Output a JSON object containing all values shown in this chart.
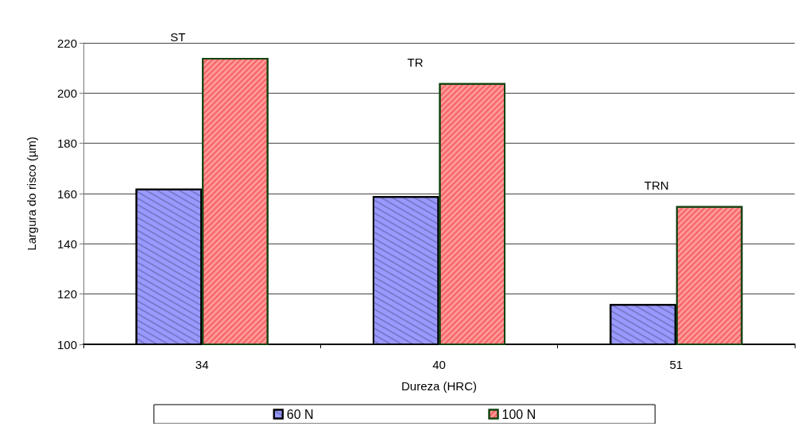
{
  "chart_data": {
    "type": "bar",
    "xlabel": "Dureza (HRC)",
    "ylabel": "Largura do risco (µm)",
    "categories": [
      "34",
      "40",
      "51"
    ],
    "series": [
      {
        "name": "60 N",
        "color": "#9999ff",
        "values": [
          162,
          159,
          116
        ]
      },
      {
        "name": "100 N",
        "color": "#ff9999",
        "values": [
          214,
          204,
          155
        ]
      }
    ],
    "ylim": [
      100,
      220
    ],
    "yticks": [
      100,
      120,
      140,
      160,
      180,
      200,
      220
    ],
    "grid": "y",
    "legend": "bottom",
    "annotations": [
      "ST",
      "TR",
      "TRN"
    ]
  }
}
